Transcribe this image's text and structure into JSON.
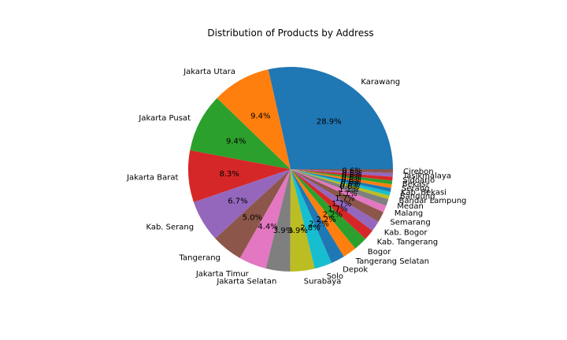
{
  "chart_data": {
    "type": "pie",
    "title": "Distribution of Products by Address",
    "start_angle_deg": 0,
    "direction": "counterclockwise",
    "slices": [
      {
        "label": "Karawang",
        "value": 28.9,
        "pct": "28.9%",
        "color": "#1f77b4"
      },
      {
        "label": "Jakarta Utara",
        "value": 9.4,
        "pct": "9.4%",
        "color": "#ff7f0e"
      },
      {
        "label": "Jakarta Pusat",
        "value": 9.4,
        "pct": "9.4%",
        "color": "#2ca02c"
      },
      {
        "label": "Jakarta Barat",
        "value": 8.3,
        "pct": "8.3%",
        "color": "#d62728"
      },
      {
        "label": "Kab. Serang",
        "value": 6.7,
        "pct": "6.7%",
        "color": "#9467bd"
      },
      {
        "label": "Tangerang",
        "value": 5.0,
        "pct": "5.0%",
        "color": "#8c564b"
      },
      {
        "label": "Jakarta Timur",
        "value": 4.4,
        "pct": "4.4%",
        "color": "#e377c2"
      },
      {
        "label": "Jakarta Selatan",
        "value": 3.9,
        "pct": "3.9%",
        "color": "#7f7f7f"
      },
      {
        "label": "Surabaya",
        "value": 3.9,
        "pct": "3.9%",
        "color": "#bcbd22"
      },
      {
        "label": "Solo",
        "value": 2.8,
        "pct": "2.8%",
        "color": "#17becf"
      },
      {
        "label": "Depok",
        "value": 2.2,
        "pct": "2.2%",
        "color": "#1f77b4"
      },
      {
        "label": "Tangerang Selatan",
        "value": 2.2,
        "pct": "2.2%",
        "color": "#ff7f0e"
      },
      {
        "label": "Bogor",
        "value": 2.2,
        "pct": "2.2%",
        "color": "#2ca02c"
      },
      {
        "label": "Kab. Tangerang",
        "value": 1.7,
        "pct": "1.7%",
        "color": "#d62728"
      },
      {
        "label": "Kab. Bogor",
        "value": 1.7,
        "pct": "1.7%",
        "color": "#9467bd"
      },
      {
        "label": "Semarang",
        "value": 1.7,
        "pct": "1.7%",
        "color": "#8c564b"
      },
      {
        "label": "Malang",
        "value": 1.1,
        "pct": "1.1%",
        "color": "#e377c2"
      },
      {
        "label": "Medan",
        "value": 1.1,
        "pct": "1.1%",
        "color": "#7f7f7f"
      },
      {
        "label": "Bandar Lampung",
        "value": 0.6,
        "pct": "0.6%",
        "color": "#bcbd22"
      },
      {
        "label": "Bandung",
        "value": 0.6,
        "pct": "0.6%",
        "color": "#17becf"
      },
      {
        "label": "Kab. Bekasi",
        "value": 0.6,
        "pct": "0.6%",
        "color": "#1f77b4"
      },
      {
        "label": "Serang",
        "value": 0.6,
        "pct": "0.6%",
        "color": "#ff7f0e"
      },
      {
        "label": "Bekasi",
        "value": 0.6,
        "pct": "0.6%",
        "color": "#2ca02c"
      },
      {
        "label": "Sidoarjo",
        "value": 0.6,
        "pct": "0.6%",
        "color": "#d62728"
      },
      {
        "label": "Tasikmalaya",
        "value": 0.6,
        "pct": "0.6%",
        "color": "#9467bd"
      },
      {
        "label": "Cirebon",
        "value": 0.6,
        "pct": "0.6%",
        "color": "#8c564b"
      }
    ]
  }
}
